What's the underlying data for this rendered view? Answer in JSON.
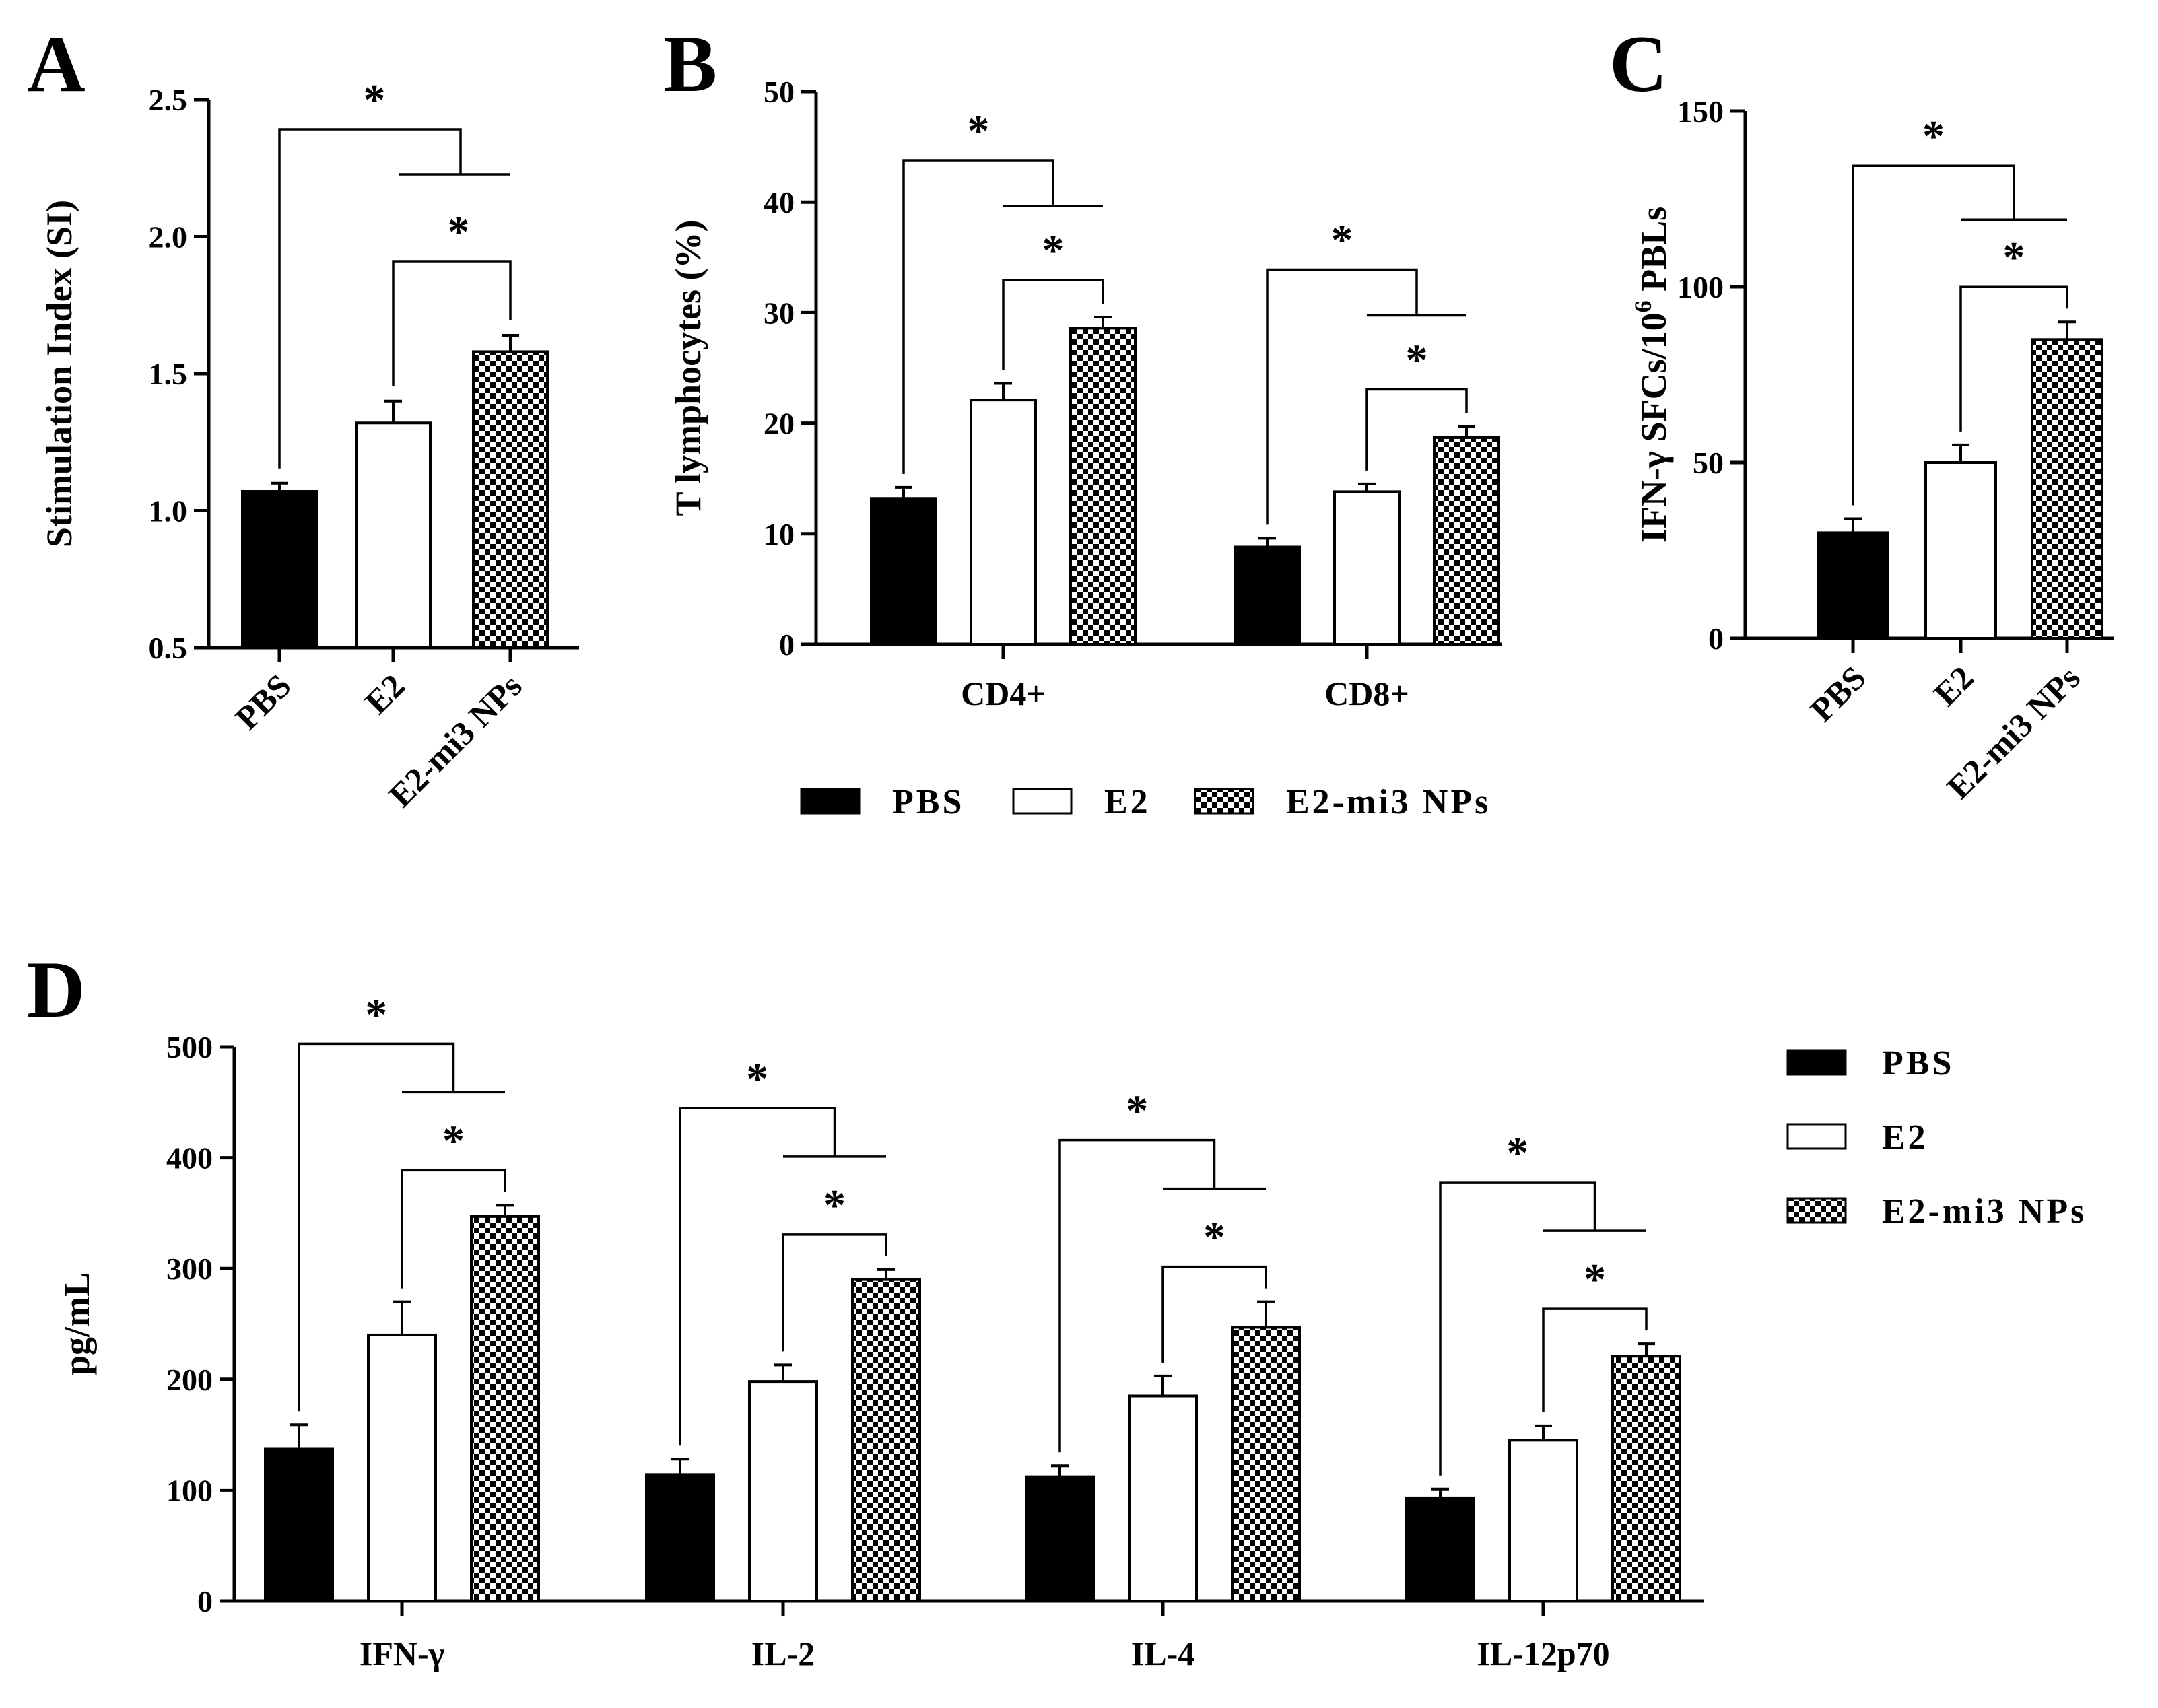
{
  "figure": {
    "legend_panel_b": [
      "PBS",
      "E2",
      "E2-mi3 NPs"
    ],
    "legend_panel_d": [
      "PBS",
      "E2",
      "E2-mi3 NPs"
    ],
    "significance_marker": "*"
  },
  "chart_data": [
    {
      "panel": "A",
      "type": "bar",
      "ylabel": "Stimulation Index (SI)",
      "ylim": [
        0.5,
        2.5
      ],
      "yticks": [
        "0.5",
        "1.0",
        "1.5",
        "2.0",
        "2.5"
      ],
      "categories": [
        "PBS",
        "E2",
        "E2-mi3 NPs"
      ],
      "values": [
        1.07,
        1.32,
        1.58
      ],
      "errors": [
        0.03,
        0.08,
        0.06
      ],
      "fills": [
        "solid",
        "open",
        "checker"
      ]
    },
    {
      "panel": "B",
      "type": "bar",
      "ylabel": "T lymphocytes (%)",
      "ylim": [
        0,
        50
      ],
      "yticks": [
        "0",
        "10",
        "20",
        "30",
        "40",
        "50"
      ],
      "groups": [
        "CD4+",
        "CD8+"
      ],
      "series": [
        {
          "name": "PBS",
          "fill": "solid",
          "values": [
            13.2,
            8.8
          ],
          "errors": [
            1.0,
            0.8
          ]
        },
        {
          "name": "E2",
          "fill": "open",
          "values": [
            22.1,
            13.8
          ],
          "errors": [
            1.5,
            0.7
          ]
        },
        {
          "name": "E2-mi3 NPs",
          "fill": "checker",
          "values": [
            28.6,
            18.7
          ],
          "errors": [
            1.0,
            1.0
          ]
        }
      ]
    },
    {
      "panel": "C",
      "type": "bar",
      "ylabel": "IFN-γ SFCs/10",
      "ylabel_sup": "6",
      "ylabel_tail": " PBLs",
      "ylim": [
        0,
        150
      ],
      "yticks": [
        "0",
        "50",
        "100",
        "150"
      ],
      "categories": [
        "PBS",
        "E2",
        "E2-mi3 NPs"
      ],
      "values": [
        30,
        50,
        85
      ],
      "errors": [
        4,
        5,
        5
      ],
      "fills": [
        "solid",
        "open",
        "checker"
      ]
    },
    {
      "panel": "D",
      "type": "bar",
      "ylabel": "pg/mL",
      "ylim": [
        0,
        500
      ],
      "yticks": [
        "0",
        "100",
        "200",
        "300",
        "400",
        "500"
      ],
      "groups": [
        "IFN-γ",
        "IL-2",
        "IL-4",
        "IL-12p70"
      ],
      "series": [
        {
          "name": "PBS",
          "fill": "solid",
          "values": [
            137,
            114,
            112,
            93
          ],
          "errors": [
            22,
            14,
            10,
            8
          ]
        },
        {
          "name": "E2",
          "fill": "open",
          "values": [
            240,
            198,
            185,
            145
          ],
          "errors": [
            30,
            15,
            18,
            13
          ]
        },
        {
          "name": "E2-mi3 NPs",
          "fill": "checker",
          "values": [
            347,
            290,
            247,
            221
          ],
          "errors": [
            10,
            9,
            23,
            11
          ]
        }
      ]
    }
  ]
}
